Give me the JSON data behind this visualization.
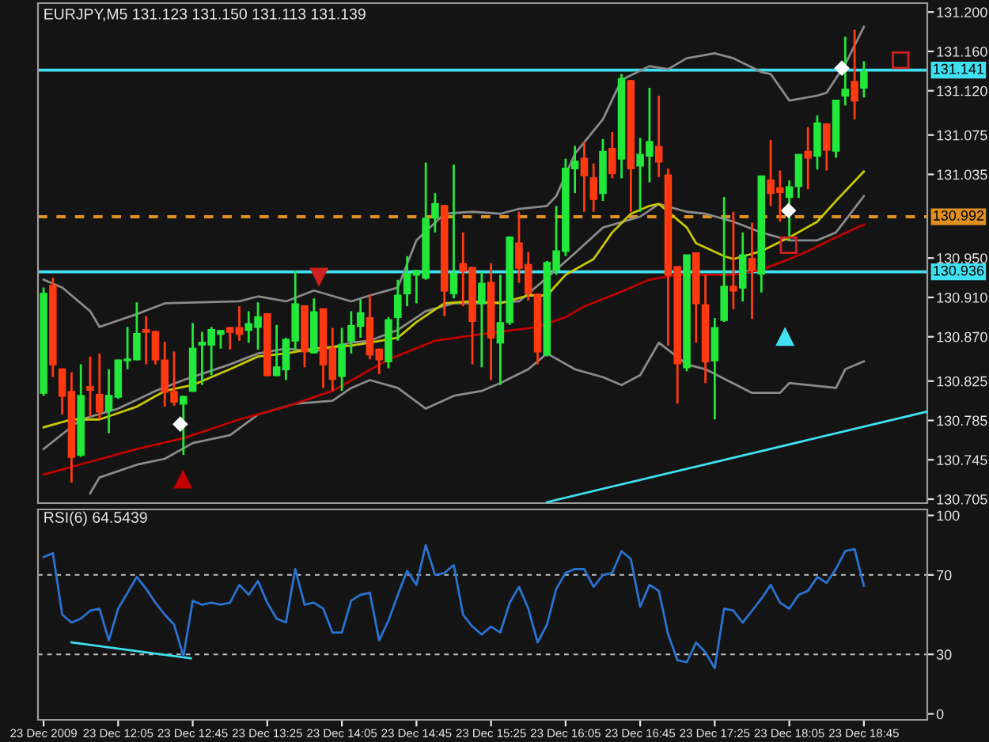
{
  "chart_data": [
    {
      "type": "candlestick",
      "title": "EURJPY,M5 131.123 131.150 131.113 131.139",
      "x": [
        "2009-12-23T11:25",
        "2009-12-23T11:30",
        "2009-12-23T11:35",
        "2009-12-23T11:40",
        "2009-12-23T11:45",
        "2009-12-23T11:50",
        "2009-12-23T11:55",
        "2009-12-23T12:00",
        "2009-12-23T12:05",
        "2009-12-23T12:10",
        "2009-12-23T12:15",
        "2009-12-23T12:20",
        "2009-12-23T12:25",
        "2009-12-23T12:30",
        "2009-12-23T12:35",
        "2009-12-23T12:40",
        "2009-12-23T12:45",
        "2009-12-23T12:50",
        "2009-12-23T12:55",
        "2009-12-23T13:00",
        "2009-12-23T13:05",
        "2009-12-23T13:10",
        "2009-12-23T13:15",
        "2009-12-23T13:20",
        "2009-12-23T13:25",
        "2009-12-23T13:30",
        "2009-12-23T13:35",
        "2009-12-23T13:40",
        "2009-12-23T13:45",
        "2009-12-23T13:50",
        "2009-12-23T13:55",
        "2009-12-23T14:00",
        "2009-12-23T14:05",
        "2009-12-23T14:10",
        "2009-12-23T14:15",
        "2009-12-23T14:20",
        "2009-12-23T14:25",
        "2009-12-23T14:30",
        "2009-12-23T14:35",
        "2009-12-23T14:40",
        "2009-12-23T14:45",
        "2009-12-23T14:50",
        "2009-12-23T14:55",
        "2009-12-23T15:00",
        "2009-12-23T15:05",
        "2009-12-23T15:10",
        "2009-12-23T15:15",
        "2009-12-23T15:20",
        "2009-12-23T15:25",
        "2009-12-23T15:30",
        "2009-12-23T15:35",
        "2009-12-23T15:40",
        "2009-12-23T15:45",
        "2009-12-23T15:50",
        "2009-12-23T15:55",
        "2009-12-23T16:00",
        "2009-12-23T16:05",
        "2009-12-23T16:10",
        "2009-12-23T16:15",
        "2009-12-23T16:20",
        "2009-12-23T16:25",
        "2009-12-23T16:30",
        "2009-12-23T16:35",
        "2009-12-23T16:40",
        "2009-12-23T16:45",
        "2009-12-23T16:50",
        "2009-12-23T16:55",
        "2009-12-23T17:00",
        "2009-12-23T17:05",
        "2009-12-23T17:10",
        "2009-12-23T17:15",
        "2009-12-23T17:20",
        "2009-12-23T17:25",
        "2009-12-23T17:30",
        "2009-12-23T17:35",
        "2009-12-23T17:40",
        "2009-12-23T17:45",
        "2009-12-23T17:50",
        "2009-12-23T17:55",
        "2009-12-23T18:00",
        "2009-12-23T18:05",
        "2009-12-23T18:10",
        "2009-12-23T18:15",
        "2009-12-23T18:20",
        "2009-12-23T18:25",
        "2009-12-23T18:30",
        "2009-12-23T18:35",
        "2009-12-23T18:40",
        "2009-12-23T18:45"
      ],
      "ohlc": [
        [
          130.813,
          130.92,
          130.81,
          130.914
        ],
        [
          130.922,
          130.93,
          130.829,
          130.842
        ],
        [
          130.837,
          130.838,
          130.791,
          130.81
        ],
        [
          130.814,
          130.834,
          130.722,
          130.748
        ],
        [
          130.75,
          130.842,
          130.748,
          130.81
        ],
        [
          130.819,
          130.85,
          130.789,
          130.816
        ],
        [
          130.811,
          130.853,
          130.786,
          130.794
        ],
        [
          130.795,
          130.837,
          130.772,
          130.81
        ],
        [
          130.809,
          130.847,
          130.807,
          130.846
        ],
        [
          130.846,
          130.88,
          130.837,
          130.847
        ],
        [
          130.847,
          130.905,
          130.846,
          130.873
        ],
        [
          130.877,
          130.891,
          130.842,
          130.875
        ],
        [
          130.875,
          130.876,
          130.842,
          130.847
        ],
        [
          130.846,
          130.865,
          130.799,
          130.814
        ],
        [
          130.814,
          130.855,
          130.8,
          130.804
        ],
        [
          130.802,
          130.81,
          130.75,
          130.809
        ],
        [
          130.815,
          130.884,
          130.814,
          130.858
        ],
        [
          130.862,
          130.875,
          130.821,
          130.864
        ],
        [
          130.862,
          130.88,
          130.831,
          130.877
        ],
        [
          130.873,
          130.877,
          130.858,
          130.876
        ],
        [
          130.879,
          130.88,
          130.857,
          130.875
        ],
        [
          130.879,
          130.901,
          130.866,
          130.873
        ],
        [
          130.877,
          130.896,
          130.864,
          130.883
        ],
        [
          130.88,
          130.905,
          130.857,
          130.89
        ],
        [
          130.893,
          130.894,
          130.83,
          130.831
        ],
        [
          130.831,
          130.882,
          130.83,
          130.839
        ],
        [
          130.837,
          130.869,
          130.826,
          130.867
        ],
        [
          130.866,
          130.937,
          130.857,
          130.903
        ],
        [
          130.901,
          130.902,
          130.839,
          130.855
        ],
        [
          130.854,
          130.909,
          130.853,
          130.895
        ],
        [
          130.898,
          130.898,
          130.818,
          130.842
        ],
        [
          130.858,
          130.879,
          130.815,
          130.827
        ],
        [
          130.83,
          130.879,
          130.815,
          130.862
        ],
        [
          130.866,
          130.896,
          130.853,
          130.881
        ],
        [
          130.881,
          130.908,
          130.869,
          130.894
        ],
        [
          130.889,
          130.913,
          130.847,
          130.852
        ],
        [
          130.857,
          130.858,
          130.832,
          130.847
        ],
        [
          130.845,
          130.89,
          130.838,
          130.887
        ],
        [
          130.89,
          130.928,
          130.866,
          130.912
        ],
        [
          130.914,
          130.952,
          130.901,
          130.934
        ],
        [
          130.933,
          130.938,
          130.904,
          130.937
        ],
        [
          130.93,
          131.047,
          130.928,
          130.99
        ],
        [
          130.991,
          131.016,
          130.976,
          131.005
        ],
        [
          131.003,
          131.004,
          130.891,
          130.917
        ],
        [
          130.914,
          131.045,
          130.909,
          130.934
        ],
        [
          130.944,
          130.976,
          130.901,
          130.937
        ],
        [
          130.94,
          130.941,
          130.842,
          130.886
        ],
        [
          130.904,
          130.936,
          130.839,
          130.924
        ],
        [
          130.925,
          130.945,
          130.826,
          130.869
        ],
        [
          130.864,
          130.933,
          130.821,
          130.884
        ],
        [
          130.885,
          130.972,
          130.882,
          130.971
        ],
        [
          130.965,
          130.997,
          130.925,
          130.94
        ],
        [
          130.943,
          130.956,
          130.907,
          130.914
        ],
        [
          130.913,
          130.914,
          130.842,
          130.855
        ],
        [
          130.852,
          130.947,
          130.85,
          130.945
        ],
        [
          130.938,
          131.003,
          130.933,
          130.957
        ],
        [
          130.957,
          131.051,
          130.952,
          131.041
        ],
        [
          131.041,
          131.064,
          131.016,
          131.048
        ],
        [
          131.051,
          131.068,
          130.997,
          131.034
        ],
        [
          131.031,
          131.046,
          130.997,
          131.01
        ],
        [
          131.016,
          131.071,
          131.008,
          131.058
        ],
        [
          131.061,
          131.078,
          131.031,
          131.036
        ],
        [
          131.051,
          131.137,
          131.031,
          131.132
        ],
        [
          131.13,
          131.131,
          130.997,
          131.041
        ],
        [
          131.044,
          131.072,
          130.997,
          131.055
        ],
        [
          131.054,
          131.123,
          131.027,
          131.068
        ],
        [
          131.063,
          131.115,
          131.032,
          131.048
        ],
        [
          131.034,
          131.041,
          130.861,
          130.933
        ],
        [
          130.941,
          130.941,
          130.802,
          130.843
        ],
        [
          130.839,
          130.953,
          130.835,
          130.953
        ],
        [
          130.955,
          130.955,
          130.864,
          130.904
        ],
        [
          130.902,
          130.933,
          130.823,
          130.845
        ],
        [
          130.846,
          130.889,
          130.786,
          130.879
        ],
        [
          130.887,
          131.012,
          130.885,
          130.921
        ],
        [
          130.921,
          130.997,
          130.898,
          130.917
        ],
        [
          130.92,
          130.976,
          130.906,
          130.953
        ],
        [
          130.949,
          130.986,
          130.888,
          130.938
        ],
        [
          130.934,
          131.033,
          130.915,
          131.033
        ],
        [
          131.029,
          131.07,
          131.003,
          131.016
        ],
        [
          131.021,
          131.039,
          130.987,
          131.017
        ],
        [
          131.012,
          131.029,
          130.968,
          131.022
        ],
        [
          131.023,
          131.055,
          131.011,
          131.055
        ],
        [
          131.058,
          131.083,
          131.02,
          131.052
        ],
        [
          131.054,
          131.095,
          131.04,
          131.087
        ],
        [
          131.086,
          131.087,
          131.039,
          131.06
        ],
        [
          131.059,
          131.11,
          131.052,
          131.11
        ],
        [
          131.115,
          131.175,
          131.105,
          131.121
        ],
        [
          131.129,
          131.182,
          131.091,
          131.11
        ],
        [
          131.123,
          131.15,
          131.113,
          131.139
        ]
      ],
      "colors": [
        "#22e83a",
        "#ff3a10",
        "#ff3a10",
        "#ff3a10",
        "#22e83a",
        "#ff3a10",
        "#ff3a10",
        "#22e83a",
        "#22e83a",
        "#22e83a",
        "#22e83a",
        "#ff3a10",
        "#ff3a10",
        "#ff3a10",
        "#ff3a10",
        "#22e83a",
        "#22e83a",
        "#22e83a",
        "#22e83a",
        "#22e83a",
        "#ff3a10",
        "#ff3a10",
        "#22e83a",
        "#22e83a",
        "#ff3a10",
        "#22e83a",
        "#22e83a",
        "#22e83a",
        "#ff3a10",
        "#22e83a",
        "#ff3a10",
        "#ff3a10",
        "#22e83a",
        "#22e83a",
        "#22e83a",
        "#ff3a10",
        "#ff3a10",
        "#22e83a",
        "#22e83a",
        "#22e83a",
        "#22e83a",
        "#22e83a",
        "#22e83a",
        "#ff3a10",
        "#22e83a",
        "#ff3a10",
        "#ff3a10",
        "#22e83a",
        "#ff3a10",
        "#22e83a",
        "#22e83a",
        "#ff3a10",
        "#ff3a10",
        "#ff3a10",
        "#22e83a",
        "#22e83a",
        "#22e83a",
        "#22e83a",
        "#ff3a10",
        "#ff3a10",
        "#22e83a",
        "#ff3a10",
        "#22e83a",
        "#ff3a10",
        "#22e83a",
        "#22e83a",
        "#ff3a10",
        "#ff3a10",
        "#ff3a10",
        "#22e83a",
        "#ff3a10",
        "#ff3a10",
        "#22e83a",
        "#22e83a",
        "#ff3a10",
        "#22e83a",
        "#ff3a10",
        "#22e83a",
        "#ff3a10",
        "#ff3a10",
        "#22e83a",
        "#22e83a",
        "#ff3a10",
        "#22e83a",
        "#ff3a10",
        "#22e83a",
        "#22e83a",
        "#ff3a10",
        "#22e83a"
      ],
      "series": [
        {
          "type": "line",
          "color": "#8a8a8a",
          "x": [
            "2009-12-23T11:25",
            "2009-12-23T11:35",
            "2009-12-23T11:50",
            "2009-12-23T11:55",
            "2009-12-23T12:15",
            "2009-12-23T12:30",
            "2009-12-23T12:50",
            "2009-12-23T13:10",
            "2009-12-23T13:20",
            "2009-12-23T13:35",
            "2009-12-23T13:50",
            "2009-12-23T14:10",
            "2009-12-23T14:20",
            "2009-12-23T14:35",
            "2009-12-23T14:45",
            "2009-12-23T15:00",
            "2009-12-23T15:15",
            "2009-12-23T15:30",
            "2009-12-23T15:40",
            "2009-12-23T15:55",
            "2009-12-23T16:00",
            "2009-12-23T16:10",
            "2009-12-23T16:25",
            "2009-12-23T16:35",
            "2009-12-23T16:50",
            "2009-12-23T17:00",
            "2009-12-23T17:10",
            "2009-12-23T17:25",
            "2009-12-23T17:35",
            "2009-12-23T17:50",
            "2009-12-23T17:55",
            "2009-12-23T18:05",
            "2009-12-23T18:20",
            "2009-12-23T18:25",
            "2009-12-23T18:35",
            "2009-12-23T18:45"
          ],
          "values": [
            130.928,
            130.92,
            130.896,
            130.88,
            130.893,
            130.904,
            130.905,
            130.906,
            130.911,
            130.906,
            130.917,
            130.906,
            130.912,
            130.92,
            130.968,
            130.995,
            130.997,
            130.995,
            131.0,
            131.003,
            131.013,
            131.056,
            131.091,
            131.131,
            131.145,
            131.142,
            131.153,
            131.158,
            131.153,
            131.139,
            131.137,
            131.11,
            131.115,
            131.118,
            131.147,
            131.185
          ]
        },
        {
          "type": "line",
          "color": "#8a8a8a",
          "x": [
            "2009-12-23T11:25",
            "2009-12-23T11:45",
            "2009-12-23T12:05",
            "2009-12-23T12:25",
            "2009-12-23T12:40",
            "2009-12-23T13:05",
            "2009-12-23T13:20",
            "2009-12-23T13:35",
            "2009-12-23T13:50",
            "2009-12-23T14:10",
            "2009-12-23T14:20",
            "2009-12-23T14:35",
            "2009-12-23T14:50",
            "2009-12-23T15:05",
            "2009-12-23T15:20",
            "2009-12-23T15:40",
            "2009-12-23T15:55",
            "2009-12-23T16:10",
            "2009-12-23T16:25",
            "2009-12-23T16:45",
            "2009-12-23T16:55",
            "2009-12-23T17:10",
            "2009-12-23T17:20",
            "2009-12-23T17:35",
            "2009-12-23T17:50",
            "2009-12-23T18:05",
            "2009-12-23T18:20",
            "2009-12-23T18:30",
            "2009-12-23T18:45"
          ],
          "values": [
            130.756,
            130.786,
            130.797,
            130.815,
            130.826,
            130.842,
            130.853,
            130.858,
            130.855,
            130.864,
            130.866,
            130.877,
            130.896,
            130.904,
            130.904,
            130.906,
            130.93,
            130.955,
            130.981,
            130.992,
            131.005,
            130.997,
            130.995,
            130.987,
            130.976,
            130.968,
            130.968,
            130.976,
            131.013
          ]
        },
        {
          "type": "line",
          "color": "#8a8a8a",
          "x": [
            "2009-12-23T11:50",
            "2009-12-23T11:55",
            "2009-12-23T12:15",
            "2009-12-23T12:30",
            "2009-12-23T12:45",
            "2009-12-23T13:05",
            "2009-12-23T13:20",
            "2009-12-23T13:40",
            "2009-12-23T14:00",
            "2009-12-23T14:10",
            "2009-12-23T14:20",
            "2009-12-23T14:35",
            "2009-12-23T14:50",
            "2009-12-23T15:05",
            "2009-12-23T15:20",
            "2009-12-23T15:30",
            "2009-12-23T15:45",
            "2009-12-23T15:55",
            "2009-12-23T16:10",
            "2009-12-23T16:25",
            "2009-12-23T16:35",
            "2009-12-23T16:45",
            "2009-12-23T16:55",
            "2009-12-23T17:10",
            "2009-12-23T17:20",
            "2009-12-23T17:45",
            "2009-12-23T18:00",
            "2009-12-23T18:05",
            "2009-12-23T18:30",
            "2009-12-23T18:35",
            "2009-12-23T18:45"
          ],
          "values": [
            130.711,
            130.727,
            130.74,
            130.746,
            130.762,
            130.77,
            130.791,
            130.802,
            130.805,
            130.818,
            130.826,
            130.818,
            130.797,
            130.81,
            130.815,
            130.823,
            130.837,
            130.853,
            130.837,
            130.829,
            130.821,
            130.831,
            130.864,
            130.842,
            130.837,
            130.813,
            130.813,
            130.823,
            130.818,
            130.837,
            130.845
          ]
        },
        {
          "type": "line",
          "color": "#c8c800",
          "x": [
            "2009-12-23T11:25",
            "2009-12-23T11:40",
            "2009-12-23T11:55",
            "2009-12-23T12:15",
            "2009-12-23T12:30",
            "2009-12-23T12:45",
            "2009-12-23T13:05",
            "2009-12-23T13:20",
            "2009-12-23T13:35",
            "2009-12-23T13:50",
            "2009-12-23T14:10",
            "2009-12-23T14:20",
            "2009-12-23T14:35",
            "2009-12-23T14:45",
            "2009-12-23T15:00",
            "2009-12-23T15:15",
            "2009-12-23T15:30",
            "2009-12-23T15:45",
            "2009-12-23T15:55",
            "2009-12-23T16:05",
            "2009-12-23T16:20",
            "2009-12-23T16:30",
            "2009-12-23T16:40",
            "2009-12-23T16:50",
            "2009-12-23T16:55",
            "2009-12-23T17:10",
            "2009-12-23T17:15",
            "2009-12-23T17:30",
            "2009-12-23T17:35",
            "2009-12-23T17:50",
            "2009-12-23T18:05",
            "2009-12-23T18:20",
            "2009-12-23T18:30",
            "2009-12-23T18:45"
          ],
          "values": [
            130.778,
            130.786,
            130.786,
            130.799,
            130.815,
            130.821,
            130.837,
            130.85,
            130.853,
            130.858,
            130.861,
            130.864,
            130.869,
            130.885,
            130.904,
            130.906,
            130.904,
            130.912,
            130.912,
            130.933,
            130.949,
            130.976,
            130.995,
            131.003,
            131.005,
            130.981,
            130.965,
            130.952,
            130.949,
            130.957,
            130.971,
            130.987,
            131.008,
            131.038
          ]
        },
        {
          "type": "line",
          "color": "#c00000",
          "x": [
            "2009-12-23T11:25",
            "2009-12-23T11:50",
            "2009-12-23T12:15",
            "2009-12-23T12:40",
            "2009-12-23T13:10",
            "2009-12-23T13:35",
            "2009-12-23T14:00",
            "2009-12-23T14:30",
            "2009-12-23T14:55",
            "2009-12-23T15:25",
            "2009-12-23T15:50",
            "2009-12-23T16:05",
            "2009-12-23T16:15",
            "2009-12-23T16:30",
            "2009-12-23T16:50",
            "2009-12-23T17:05",
            "2009-12-23T17:20",
            "2009-12-23T17:35",
            "2009-12-23T17:50",
            "2009-12-23T18:05",
            "2009-12-23T18:15",
            "2009-12-23T18:30",
            "2009-12-23T18:45"
          ],
          "values": [
            130.73,
            130.743,
            130.756,
            130.767,
            130.786,
            130.799,
            130.815,
            130.847,
            130.866,
            130.874,
            130.88,
            130.89,
            130.901,
            130.912,
            130.928,
            130.933,
            130.933,
            130.933,
            130.938,
            130.949,
            130.957,
            130.971,
            130.984
          ]
        },
        {
          "type": "line",
          "color": "#40e0f0",
          "x": [
            "2009-12-23T15:55",
            "2009-12-23T19:19"
          ],
          "values": [
            130.702,
            130.794
          ]
        }
      ],
      "ref_lines": [
        {
          "axis": "y",
          "value": 131.141,
          "label": "131.141",
          "color": "#40e0f0",
          "line_style": "solid"
        },
        {
          "axis": "y",
          "value": 130.936,
          "label": "130.936",
          "color": "#40e0f0",
          "line_style": "solid"
        },
        {
          "axis": "y",
          "value": 130.992,
          "label": "130.992",
          "color": "#e09020",
          "line_style": "dashed"
        }
      ],
      "xlim": [
        "2009-12-23T11:22",
        "2009-12-23T19:19"
      ],
      "ylim": [
        130.701,
        131.209
      ],
      "yticks": [
        {
          "value": 131.2,
          "label": "131.200"
        },
        {
          "value": 131.16,
          "label": "131.160"
        },
        {
          "value": 131.12,
          "label": "131.120"
        },
        {
          "value": 131.075,
          "label": "131.075"
        },
        {
          "value": 131.035,
          "label": "131.035"
        },
        {
          "value": 130.95,
          "label": "130.950"
        },
        {
          "value": 130.91,
          "label": "130.910"
        },
        {
          "value": 130.87,
          "label": "130.870"
        },
        {
          "value": 130.825,
          "label": "130.825"
        },
        {
          "value": 130.785,
          "label": "130.785"
        },
        {
          "value": 130.745,
          "label": "130.745"
        },
        {
          "value": 130.705,
          "label": "130.705"
        }
      ],
      "tick_labels": "y"
    },
    {
      "type": "line",
      "title": "RSI(6) 64.5439",
      "x": [
        "2009-12-23T11:25",
        "2009-12-23T11:30",
        "2009-12-23T11:35",
        "2009-12-23T11:40",
        "2009-12-23T11:45",
        "2009-12-23T11:50",
        "2009-12-23T11:55",
        "2009-12-23T12:00",
        "2009-12-23T12:05",
        "2009-12-23T12:10",
        "2009-12-23T12:15",
        "2009-12-23T12:20",
        "2009-12-23T12:25",
        "2009-12-23T12:30",
        "2009-12-23T12:35",
        "2009-12-23T12:40",
        "2009-12-23T12:45",
        "2009-12-23T12:50",
        "2009-12-23T12:55",
        "2009-12-23T13:00",
        "2009-12-23T13:05",
        "2009-12-23T13:10",
        "2009-12-23T13:15",
        "2009-12-23T13:20",
        "2009-12-23T13:25",
        "2009-12-23T13:30",
        "2009-12-23T13:35",
        "2009-12-23T13:40",
        "2009-12-23T13:45",
        "2009-12-23T13:50",
        "2009-12-23T13:55",
        "2009-12-23T14:00",
        "2009-12-23T14:05",
        "2009-12-23T14:10",
        "2009-12-23T14:15",
        "2009-12-23T14:20",
        "2009-12-23T14:25",
        "2009-12-23T14:30",
        "2009-12-23T14:35",
        "2009-12-23T14:40",
        "2009-12-23T14:45",
        "2009-12-23T14:50",
        "2009-12-23T14:55",
        "2009-12-23T15:00",
        "2009-12-23T15:05",
        "2009-12-23T15:10",
        "2009-12-23T15:15",
        "2009-12-23T15:20",
        "2009-12-23T15:25",
        "2009-12-23T15:30",
        "2009-12-23T15:35",
        "2009-12-23T15:40",
        "2009-12-23T15:45",
        "2009-12-23T15:50",
        "2009-12-23T15:55",
        "2009-12-23T16:00",
        "2009-12-23T16:05",
        "2009-12-23T16:10",
        "2009-12-23T16:15",
        "2009-12-23T16:20",
        "2009-12-23T16:25",
        "2009-12-23T16:30",
        "2009-12-23T16:35",
        "2009-12-23T16:40",
        "2009-12-23T16:45",
        "2009-12-23T16:50",
        "2009-12-23T16:55",
        "2009-12-23T17:00",
        "2009-12-23T17:05",
        "2009-12-23T17:10",
        "2009-12-23T17:15",
        "2009-12-23T17:20",
        "2009-12-23T17:25",
        "2009-12-23T17:30",
        "2009-12-23T17:35",
        "2009-12-23T17:40",
        "2009-12-23T17:45",
        "2009-12-23T17:50",
        "2009-12-23T17:55",
        "2009-12-23T18:00",
        "2009-12-23T18:05",
        "2009-12-23T18:10",
        "2009-12-23T18:15",
        "2009-12-23T18:20",
        "2009-12-23T18:25",
        "2009-12-23T18:30",
        "2009-12-23T18:35",
        "2009-12-23T18:40",
        "2009-12-23T18:45"
      ],
      "series": [
        {
          "color": "#2a72d0",
          "values": [
            79,
            81,
            50,
            46,
            48,
            52,
            53,
            37,
            53,
            61,
            69,
            63,
            56,
            50,
            45,
            29,
            57,
            55,
            56,
            55,
            56,
            65,
            60,
            67,
            56,
            48,
            46,
            73,
            55,
            56,
            53,
            41,
            41,
            57,
            60,
            61,
            37,
            47,
            60,
            72,
            65,
            85,
            70,
            71,
            75,
            50,
            44,
            40,
            44,
            41,
            56,
            64,
            53,
            36,
            45,
            63,
            71,
            73,
            73,
            64,
            70,
            71,
            82,
            78,
            54,
            65,
            62,
            40,
            27,
            26,
            36,
            31,
            23,
            53,
            52,
            46,
            52,
            58,
            65,
            56,
            53,
            60,
            62,
            69,
            66,
            73,
            82,
            83,
            64.5
          ]
        },
        {
          "color": "#40e0f0",
          "x": [
            "2009-12-23T11:40",
            "2009-12-23T12:44"
          ],
          "values": [
            36,
            28
          ]
        }
      ],
      "ref_lines": [
        {
          "axis": "y",
          "value": 70,
          "color": "#c0c0c0",
          "line_style": "dashed"
        },
        {
          "axis": "y",
          "value": 30,
          "color": "#c0c0c0",
          "line_style": "dashed"
        }
      ],
      "xlim": [
        "2009-12-23T11:22",
        "2009-12-23T19:19"
      ],
      "xticks": [
        {
          "value": "2009-12-23T11:25",
          "label": "23 Dec 2009"
        },
        {
          "value": "2009-12-23T12:05",
          "label": "23 Dec 12:05"
        },
        {
          "value": "2009-12-23T12:45",
          "label": "23 Dec 12:45"
        },
        {
          "value": "2009-12-23T13:25",
          "label": "23 Dec 13:25"
        },
        {
          "value": "2009-12-23T14:05",
          "label": "23 Dec 14:05"
        },
        {
          "value": "2009-12-23T14:45",
          "label": "23 Dec 14:45"
        },
        {
          "value": "2009-12-23T15:25",
          "label": "23 Dec 15:25"
        },
        {
          "value": "2009-12-23T16:05",
          "label": "23 Dec 16:05"
        },
        {
          "value": "2009-12-23T16:45",
          "label": "23 Dec 16:45"
        },
        {
          "value": "2009-12-23T17:25",
          "label": "23 Dec 17:25"
        },
        {
          "value": "2009-12-23T18:05",
          "label": "23 Dec 18:05"
        },
        {
          "value": "2009-12-23T18:45",
          "label": "23 Dec 18:45"
        }
      ],
      "ylim": [
        -3,
        103
      ],
      "yticks": [
        0,
        30,
        70,
        100
      ]
    }
  ]
}
